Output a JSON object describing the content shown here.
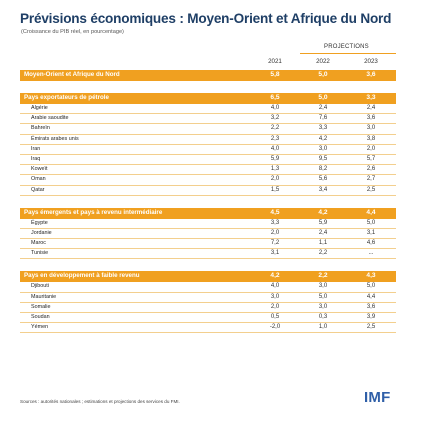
{
  "title": "Prévisions économiques : Moyen-Orient et Afrique du Nord",
  "subtitle": "(Croissance du PIB réel, en pourcentage)",
  "projections_label": "PROJECTIONS",
  "years": [
    "2021",
    "2022",
    "2023"
  ],
  "colors": {
    "accent": "#f0a020",
    "title": "#1f3f66",
    "logo": "#2f5fa8"
  },
  "summary": {
    "label": "Moyen-Orient et Afrique du Nord",
    "values": [
      "5,8",
      "5,0",
      "3,6"
    ]
  },
  "groups": [
    {
      "label": "Pays exportateurs de pétrole",
      "values": [
        "6,5",
        "5,0",
        "3,3"
      ],
      "rows": [
        {
          "name": "Algérie",
          "values": [
            "4,0",
            "2,4",
            "2,4"
          ]
        },
        {
          "name": "Arabie saoudite",
          "values": [
            "3,2",
            "7,6",
            "3,6"
          ]
        },
        {
          "name": "Bahreïn",
          "values": [
            "2,2",
            "3,3",
            "3,0"
          ]
        },
        {
          "name": "Émirats arabes unis",
          "values": [
            "2,3",
            "4,2",
            "3,8"
          ]
        },
        {
          "name": "Iran",
          "values": [
            "4,0",
            "3,0",
            "2,0"
          ]
        },
        {
          "name": "Iraq",
          "values": [
            "5,9",
            "9,5",
            "5,7"
          ]
        },
        {
          "name": "Koweït",
          "values": [
            "1,3",
            "8,2",
            "2,6"
          ]
        },
        {
          "name": "Oman",
          "values": [
            "2,0",
            "5,6",
            "2,7"
          ]
        },
        {
          "name": "Qatar",
          "values": [
            "1,5",
            "3,4",
            "2,5"
          ]
        }
      ]
    },
    {
      "label": "Pays émergents et pays à revenu intermédiaire",
      "values": [
        "4,5",
        "4,2",
        "4,4"
      ],
      "rows": [
        {
          "name": "Égypte",
          "values": [
            "3,3",
            "5,9",
            "5,0"
          ]
        },
        {
          "name": "Jordanie",
          "values": [
            "2,0",
            "2,4",
            "3,1"
          ]
        },
        {
          "name": "Maroc",
          "values": [
            "7,2",
            "1,1",
            "4,6"
          ]
        },
        {
          "name": "Tunisie",
          "values": [
            "3,1",
            "2,2",
            "..."
          ]
        }
      ]
    },
    {
      "label": "Pays en développement à faible revenu",
      "values": [
        "4,2",
        "2,2",
        "4,3"
      ],
      "rows": [
        {
          "name": "Djibouti",
          "values": [
            "4,0",
            "3,0",
            "5,0"
          ]
        },
        {
          "name": "Mauritanie",
          "values": [
            "3,0",
            "5,0",
            "4,4"
          ]
        },
        {
          "name": "Somalie",
          "values": [
            "2,0",
            "3,0",
            "3,6"
          ]
        },
        {
          "name": "Soudan",
          "values": [
            "0,5",
            "0,3",
            "3,9"
          ]
        },
        {
          "name": "Yémen",
          "values": [
            "-2,0",
            "1,0",
            "2,5"
          ]
        }
      ]
    }
  ],
  "footer": "Sources : autorités nationales ; estimations et projections des services du FMI.",
  "logo": "IMF"
}
